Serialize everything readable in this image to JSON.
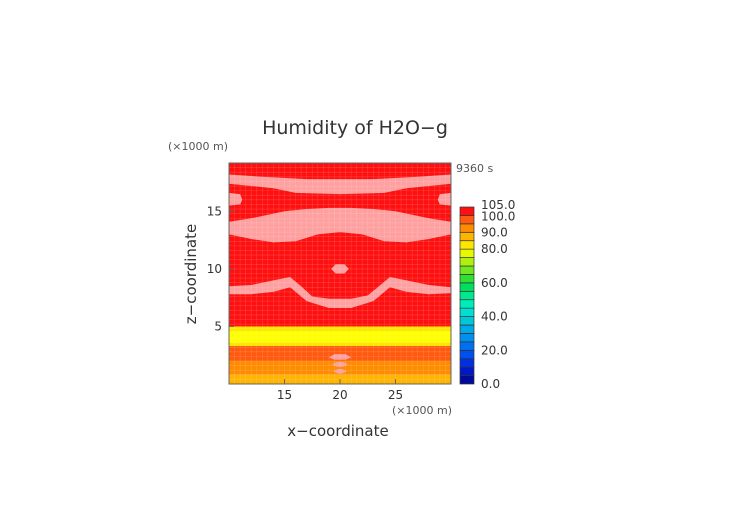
{
  "chart_data": {
    "type": "heatmap",
    "title": "Humidity of H2O−g",
    "xlabel": "x−coordinate",
    "ylabel": "z−coordinate",
    "x_unit": "(×1000 m)",
    "y_unit": "(×1000 m)",
    "time_label": "9360 s",
    "xlim": [
      10,
      30
    ],
    "ylim": [
      0,
      19.2
    ],
    "x_ticks": [
      "15",
      "20",
      "25"
    ],
    "y_ticks": [
      "5",
      "10",
      "15"
    ],
    "colorbar": {
      "labels": [
        "105.0",
        "100.0",
        "90.0",
        "80.0",
        "60.0",
        "40.0",
        "20.0",
        "0.0"
      ],
      "levels": [
        0,
        5,
        10,
        15,
        20,
        25,
        30,
        35,
        40,
        45,
        50,
        55,
        60,
        65,
        70,
        75,
        80,
        85,
        90,
        95,
        100,
        105
      ],
      "colors": [
        "#000a9a",
        "#0018c8",
        "#0030e6",
        "#0050f0",
        "#0070f4",
        "#0090f0",
        "#00a8e8",
        "#00c8d8",
        "#00e0d0",
        "#00ecb8",
        "#00e890",
        "#00e060",
        "#30e030",
        "#70e820",
        "#b0f010",
        "#e8f800",
        "#ffe600",
        "#ffb400",
        "#ff8c00",
        "#ff5a10",
        "#ff1010",
        "#ffffff"
      ]
    },
    "field_colors": {
      "pink": "#ffa0a0",
      "red": "#ff1010",
      "orange_red": "#ff5a10",
      "orange": "#ff8c00",
      "amber": "#ffb400",
      "yellow": "#ffff00",
      "light_yellow": "#ffe600"
    },
    "layers": [
      {
        "z": [
          0,
          0.8
        ],
        "band": "80-85"
      },
      {
        "z": [
          0.8,
          2.0
        ],
        "band": "85-90"
      },
      {
        "z": [
          2.0,
          3.3
        ],
        "band": "90-95"
      },
      {
        "z": [
          3.3,
          4.8
        ],
        "band": "80-85"
      },
      {
        "z": [
          4.8,
          19.2
        ],
        "band": "95-100"
      }
    ]
  }
}
